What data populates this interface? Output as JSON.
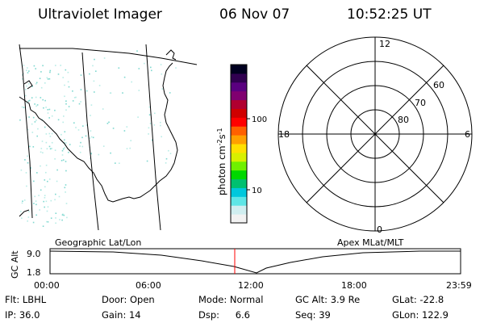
{
  "header": {
    "instrument": "Ultraviolet Imager",
    "date": "06 Nov 07",
    "time": "10:52:25 UT"
  },
  "colorbar": {
    "label": "photon cm",
    "label_exp1": "-2",
    "label_mid": "s",
    "label_exp2": "-1",
    "ticks": [
      {
        "label": "100",
        "value": 100
      },
      {
        "label": "10",
        "value": 10
      }
    ],
    "colors": [
      "#f2f2f2",
      "#d0eef0",
      "#5ee6e6",
      "#00c8dc",
      "#00c070",
      "#00d800",
      "#70f000",
      "#d8f000",
      "#ffe000",
      "#ffa000",
      "#ff6000",
      "#ff0000",
      "#d00000",
      "#b00030",
      "#800070",
      "#5a0080",
      "#300050",
      "#000020"
    ]
  },
  "geographic_map": {
    "type": "map",
    "projection_label": "Geographic Lat/Lon",
    "colors": {
      "coast": "#000000",
      "aurora_dots": "#7fd8d0"
    }
  },
  "polar_plot": {
    "projection_label": "Apex MLat/MLT",
    "mlt_labels": [
      "12",
      "18",
      "6",
      "0"
    ],
    "mlat_labels": [
      "60",
      "70",
      "80"
    ]
  },
  "altitude_plot": {
    "ylabel": "GC Alt",
    "yticks": [
      "9.0",
      "1.8"
    ],
    "xticks": [
      "00:00",
      "06:00",
      "12:00",
      "18:00",
      "23:59"
    ],
    "current_time_marker": "10:52",
    "marker_color": "#ff0000"
  },
  "status": {
    "flt_label": "Flt:",
    "flt_value": "LBHL",
    "ip_label": "IP:",
    "ip_value": "36.0",
    "door_label": "Door:",
    "door_value": "Open",
    "gain_label": "Gain:",
    "gain_value": "14",
    "mode_label": "Mode:",
    "mode_value": "Normal",
    "dsp_label": "Dsp:",
    "dsp_value": "6.6",
    "gcalt_label": "GC Alt:",
    "gcalt_value": "3.9 Re",
    "seq_label": "Seq:",
    "seq_value": "39",
    "glat_label": "GLat:",
    "glat_value": "-22.8",
    "glon_label": "GLon:",
    "glon_value": "122.9"
  }
}
